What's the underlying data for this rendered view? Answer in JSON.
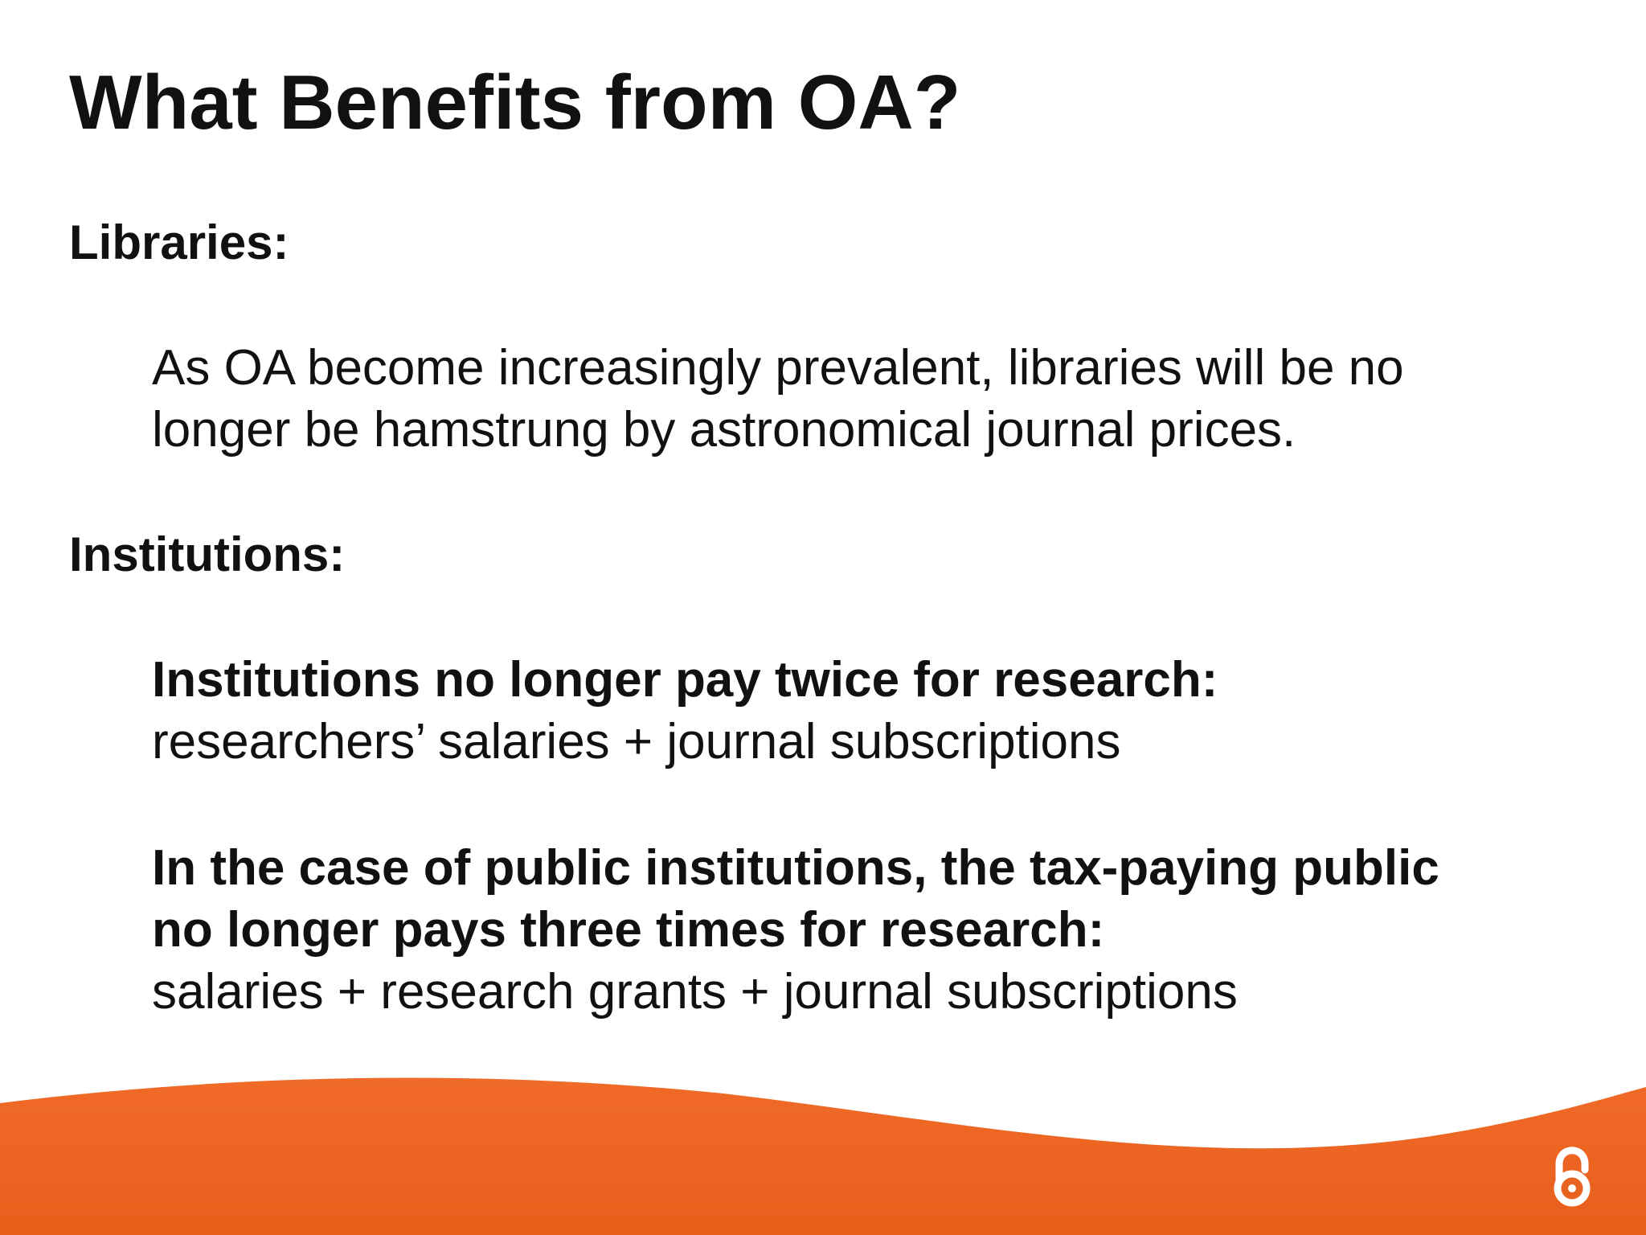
{
  "title": "What Benefits from OA?",
  "sections": [
    {
      "heading": "Libraries:",
      "blocks": [
        {
          "lines": [
            {
              "text": "As OA become increasingly prevalent, libraries will be no",
              "bold": false
            },
            {
              "text": "longer be hamstrung by astronomical journal prices.",
              "bold": false
            }
          ]
        }
      ]
    },
    {
      "heading": "Institutions:",
      "blocks": [
        {
          "lines": [
            {
              "text": "Institutions no longer pay twice for research:",
              "bold": true
            },
            {
              "text": "researchers’ salaries + journal subscriptions",
              "bold": false
            }
          ]
        },
        {
          "lines": [
            {
              "text": "In the case of public institutions, the tax-paying public",
              "bold": true
            },
            {
              "text": "no longer pays three times for research:",
              "bold": true
            },
            {
              "text": "salaries + research grants + journal subscriptions",
              "bold": false
            }
          ]
        }
      ]
    }
  ]
}
